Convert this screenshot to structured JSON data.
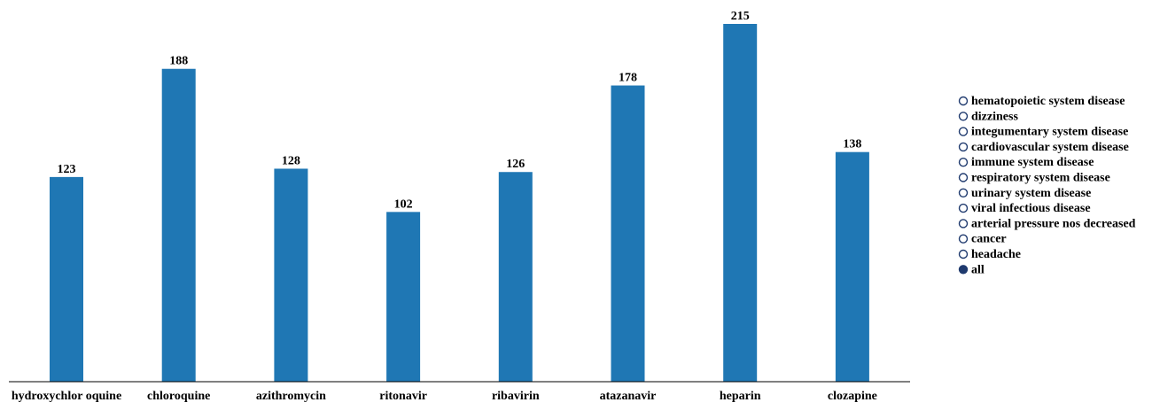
{
  "chart_data": {
    "type": "bar",
    "categories": [
      "hydroxychlor oquine",
      "chloroquine",
      "azithromycin",
      "ritonavir",
      "ribavirin",
      "atazanavir",
      "heparin",
      "clozapine"
    ],
    "values": [
      123,
      188,
      128,
      102,
      126,
      178,
      215,
      138
    ],
    "title": "",
    "xlabel": "",
    "ylabel": "",
    "ylim": [
      0,
      215
    ],
    "grid": false,
    "bar_color": "#1f77b4",
    "data_labels": true
  },
  "legend": {
    "placement": "right",
    "selected": "all",
    "items": [
      "hematopoietic system disease",
      "dizziness",
      "integumentary system disease",
      "cardiovascular system disease",
      "immune system disease",
      "respiratory system disease",
      "urinary system disease",
      "viral infectious disease",
      "arterial pressure nos decreased",
      "cancer",
      "headache",
      "all"
    ],
    "marker_color": "#1f3a6e"
  }
}
